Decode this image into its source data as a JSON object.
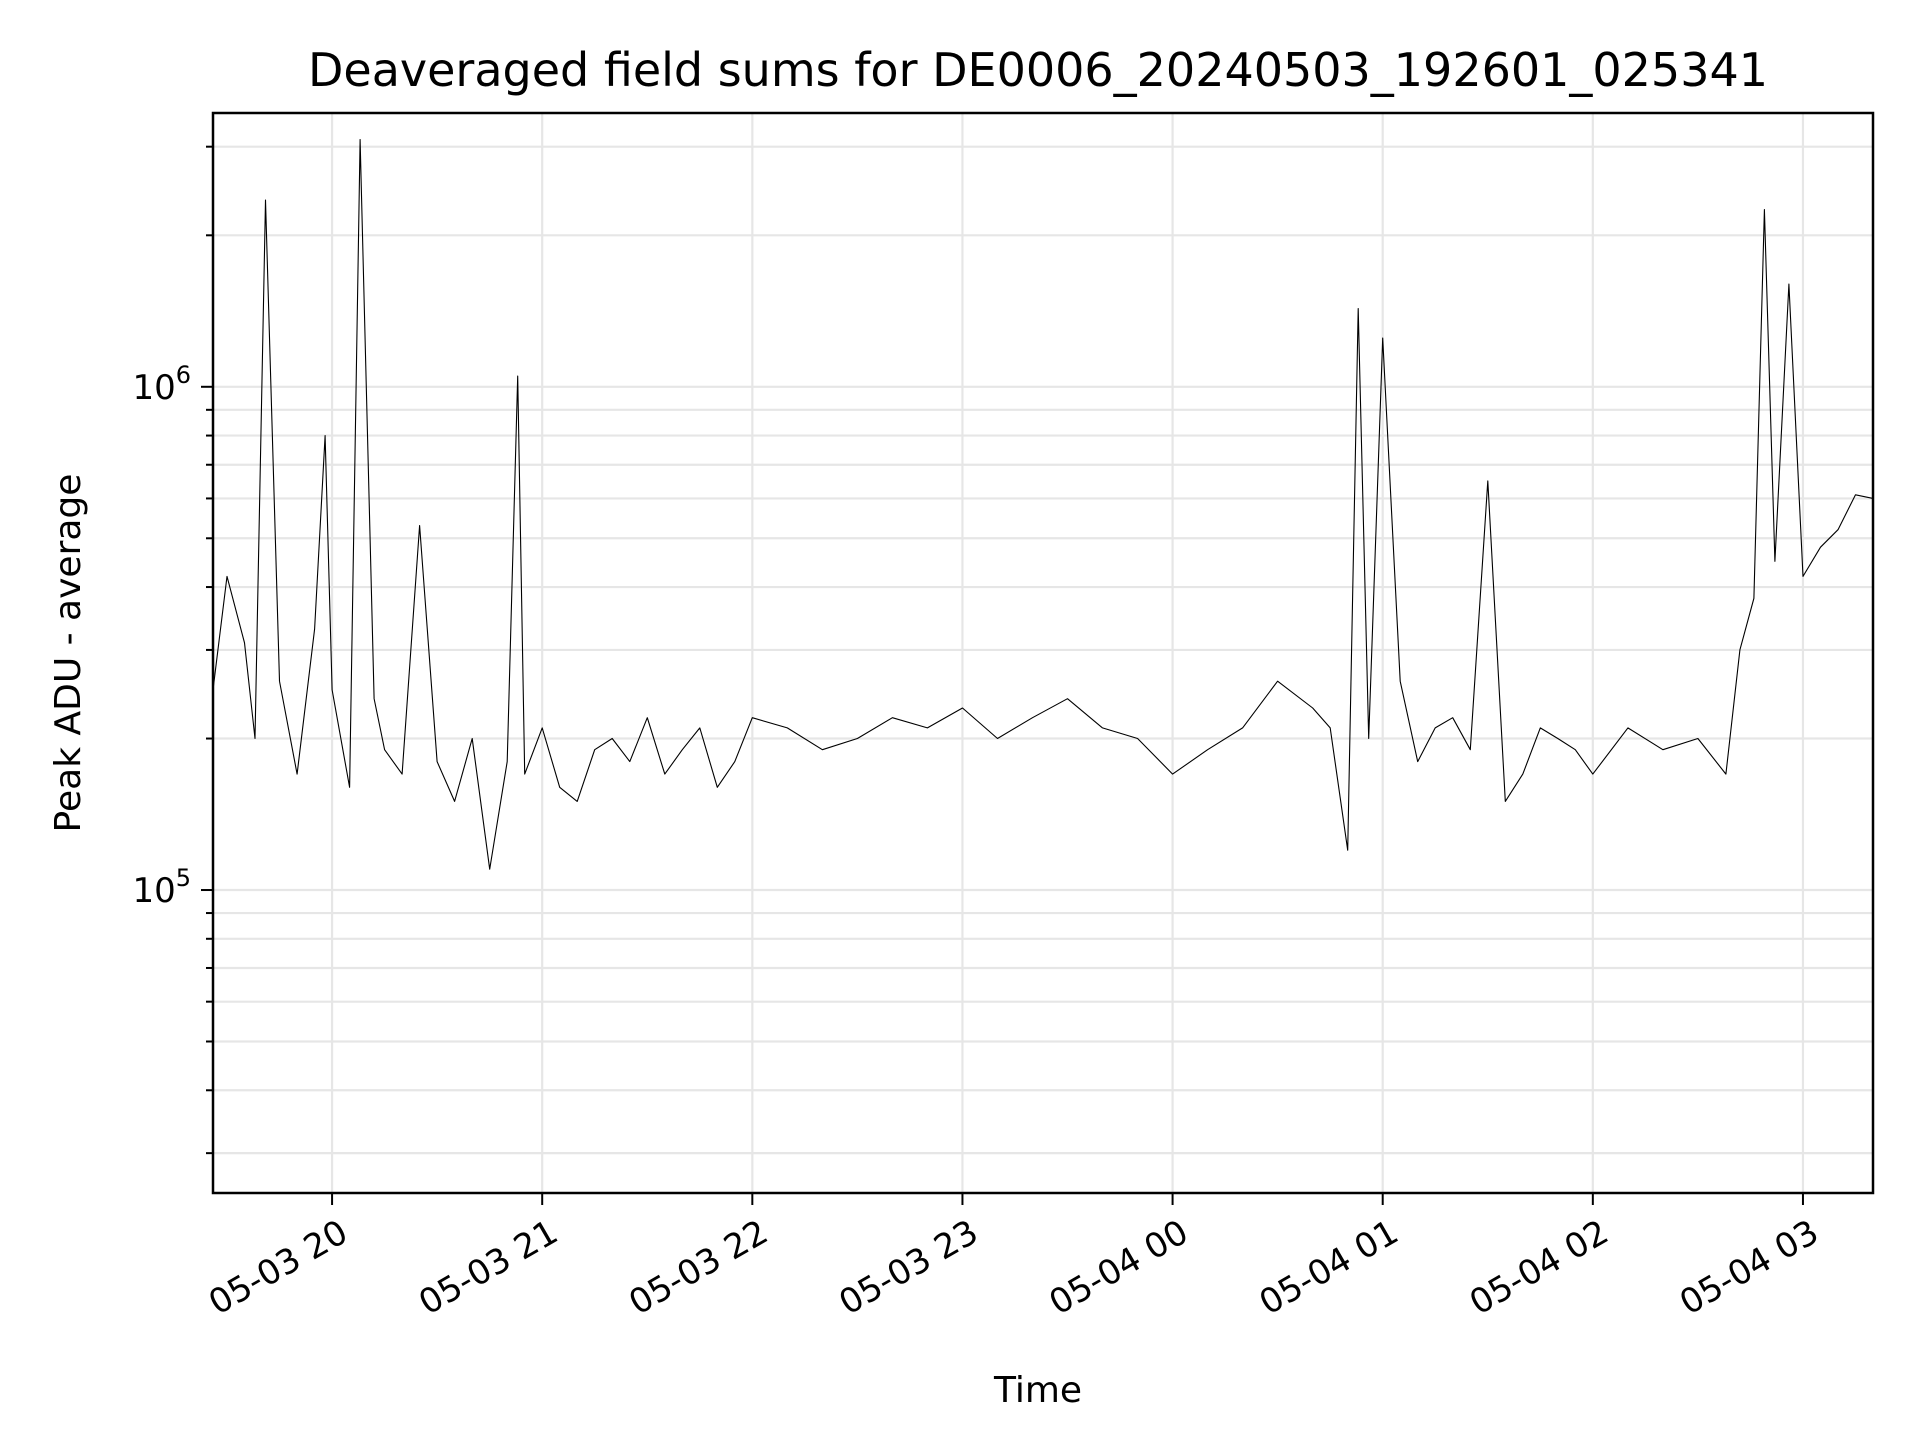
{
  "chart_data": {
    "type": "line",
    "title": "Deaveraged field sums for DE0006_20240503_192601_025341",
    "xlabel": "Time",
    "ylabel": "Peak ADU - average",
    "yscale": "log",
    "xlim": [
      "2024-05-03 19:26",
      "2024-05-04 03:20"
    ],
    "ylim": [
      25000,
      3500000
    ],
    "grid": true,
    "x_ticks": [
      {
        "value": "2024-05-03 20:00",
        "label": "05-03 20"
      },
      {
        "value": "2024-05-03 21:00",
        "label": "05-03 21"
      },
      {
        "value": "2024-05-03 22:00",
        "label": "05-03 22"
      },
      {
        "value": "2024-05-03 23:00",
        "label": "05-03 23"
      },
      {
        "value": "2024-05-04 00:00",
        "label": "05-04 00"
      },
      {
        "value": "2024-05-04 01:00",
        "label": "05-04 01"
      },
      {
        "value": "2024-05-04 02:00",
        "label": "05-04 02"
      },
      {
        "value": "2024-05-04 03:00",
        "label": "05-04 03"
      }
    ],
    "y_ticks": [
      {
        "value": 100000,
        "base": "10",
        "exponent": "5"
      },
      {
        "value": 1000000,
        "base": "10",
        "exponent": "6"
      }
    ],
    "series": [
      {
        "color": "#000000",
        "x": [
          "2024-05-03 19:26",
          "2024-05-03 19:30",
          "2024-05-03 19:35",
          "2024-05-03 19:38",
          "2024-05-03 19:41",
          "2024-05-03 19:45",
          "2024-05-03 19:50",
          "2024-05-03 19:55",
          "2024-05-03 19:58",
          "2024-05-03 20:00",
          "2024-05-03 20:05",
          "2024-05-03 20:08",
          "2024-05-03 20:12",
          "2024-05-03 20:15",
          "2024-05-03 20:20",
          "2024-05-03 20:25",
          "2024-05-03 20:30",
          "2024-05-03 20:35",
          "2024-05-03 20:40",
          "2024-05-03 20:45",
          "2024-05-03 20:50",
          "2024-05-03 20:53",
          "2024-05-03 20:55",
          "2024-05-03 21:00",
          "2024-05-03 21:05",
          "2024-05-03 21:10",
          "2024-05-03 21:15",
          "2024-05-03 21:20",
          "2024-05-03 21:25",
          "2024-05-03 21:30",
          "2024-05-03 21:35",
          "2024-05-03 21:40",
          "2024-05-03 21:45",
          "2024-05-03 21:50",
          "2024-05-03 21:55",
          "2024-05-03 22:00",
          "2024-05-03 22:10",
          "2024-05-03 22:20",
          "2024-05-03 22:30",
          "2024-05-03 22:40",
          "2024-05-03 22:50",
          "2024-05-03 23:00",
          "2024-05-03 23:10",
          "2024-05-03 23:20",
          "2024-05-03 23:30",
          "2024-05-03 23:40",
          "2024-05-03 23:50",
          "2024-05-04 00:00",
          "2024-05-04 00:10",
          "2024-05-04 00:20",
          "2024-05-04 00:30",
          "2024-05-04 00:40",
          "2024-05-04 00:45",
          "2024-05-04 00:50",
          "2024-05-04 00:53",
          "2024-05-04 00:56",
          "2024-05-04 01:00",
          "2024-05-04 01:05",
          "2024-05-04 01:10",
          "2024-05-04 01:15",
          "2024-05-04 01:20",
          "2024-05-04 01:25",
          "2024-05-04 01:30",
          "2024-05-04 01:35",
          "2024-05-04 01:40",
          "2024-05-04 01:45",
          "2024-05-04 01:50",
          "2024-05-04 01:55",
          "2024-05-04 02:00",
          "2024-05-04 02:10",
          "2024-05-04 02:20",
          "2024-05-04 02:30",
          "2024-05-04 02:38",
          "2024-05-04 02:42",
          "2024-05-04 02:46",
          "2024-05-04 02:49",
          "2024-05-04 02:52",
          "2024-05-04 02:56",
          "2024-05-04 03:00",
          "2024-05-04 03:05",
          "2024-05-04 03:10",
          "2024-05-04 03:15",
          "2024-05-04 03:20"
        ],
        "values": [
          250000,
          420000,
          310000,
          200000,
          2350000,
          260000,
          170000,
          330000,
          800000,
          250000,
          160000,
          3100000,
          240000,
          190000,
          170000,
          530000,
          180000,
          150000,
          200000,
          110000,
          180000,
          1050000,
          170000,
          210000,
          160000,
          150000,
          190000,
          200000,
          180000,
          220000,
          170000,
          190000,
          210000,
          160000,
          180000,
          220000,
          210000,
          190000,
          200000,
          220000,
          210000,
          230000,
          200000,
          220000,
          240000,
          210000,
          200000,
          170000,
          190000,
          210000,
          260000,
          230000,
          210000,
          120000,
          1430000,
          200000,
          1250000,
          260000,
          180000,
          210000,
          220000,
          190000,
          650000,
          150000,
          170000,
          210000,
          200000,
          190000,
          170000,
          210000,
          190000,
          200000,
          170000,
          300000,
          380000,
          2250000,
          450000,
          1600000,
          420000,
          480000,
          520000,
          610000,
          600000
        ]
      }
    ]
  }
}
